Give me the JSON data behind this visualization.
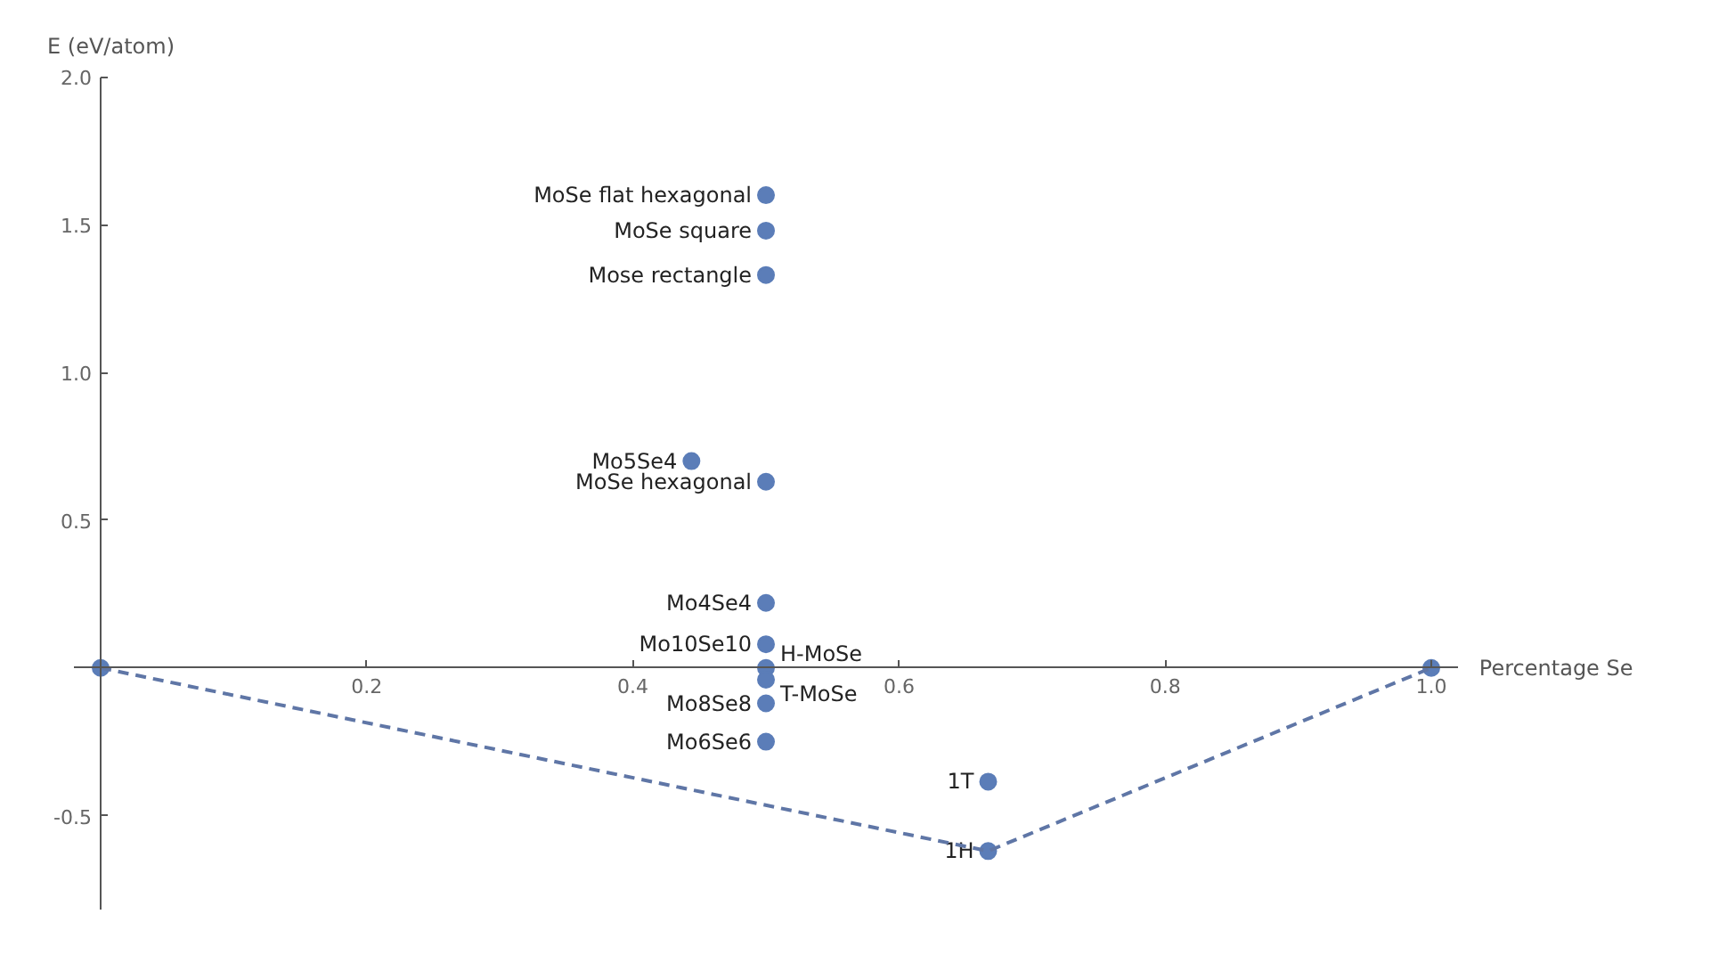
{
  "chart_data": {
    "type": "scatter",
    "xlabel": "Percentage Se",
    "ylabel": "E (eV/atom)",
    "xlim": [
      -0.02,
      1.02
    ],
    "ylim": [
      -0.82,
      2.0
    ],
    "xticks": [
      0.2,
      0.4,
      0.6,
      0.8,
      {
        "value": 1,
        "label": "1.0"
      }
    ],
    "yticks": [
      -0.5,
      0.5,
      {
        "value": 1,
        "label": "1.0"
      },
      1.5,
      {
        "value": 2,
        "label": "2.0"
      }
    ],
    "grid": false,
    "series": [
      {
        "color": "#5b7db8",
        "marker": "circle",
        "x": [
          0,
          0.5,
          0.5,
          0.5,
          0.444,
          0.5,
          0.5,
          0.5,
          0.5,
          0.5,
          0.5,
          0.5,
          0.667,
          0.667,
          1.0
        ],
        "values": [
          0,
          1.6,
          1.48,
          1.33,
          0.7,
          0.63,
          0.22,
          0.08,
          0.0,
          -0.04,
          -0.12,
          -0.25,
          -0.385,
          -0.62,
          0
        ]
      },
      {
        "type": "line",
        "line_style": "dashed",
        "color": "#5f76a6",
        "x": [
          0,
          0.667,
          1.0
        ],
        "values": [
          0,
          -0.62,
          0
        ]
      }
    ],
    "annotations": [
      {
        "text": "MoSe flat hexagonal",
        "x": 0.5,
        "y": 1.6
      },
      {
        "text": "MoSe square",
        "x": 0.5,
        "y": 1.48
      },
      {
        "text": "Mose rectangle",
        "x": 0.5,
        "y": 1.33
      },
      {
        "text": "Mo5Se4",
        "x": 0.444,
        "y": 0.7
      },
      {
        "text": "MoSe hexagonal",
        "x": 0.5,
        "y": 0.63
      },
      {
        "text": "Mo4Se4",
        "x": 0.5,
        "y": 0.22
      },
      {
        "text": "Mo10Se10",
        "x": 0.5,
        "y": 0.08
      },
      {
        "text": "H-MoSe",
        "x": 0.5,
        "y": 0.0
      },
      {
        "text": "T-MoSe",
        "x": 0.5,
        "y": -0.04
      },
      {
        "text": "Mo8Se8",
        "x": 0.5,
        "y": -0.12
      },
      {
        "text": "Mo6Se6",
        "x": 0.5,
        "y": -0.25
      },
      {
        "text": "1T",
        "x": 0.667,
        "y": -0.385
      },
      {
        "text": "1H",
        "x": 0.667,
        "y": -0.62
      }
    ]
  }
}
